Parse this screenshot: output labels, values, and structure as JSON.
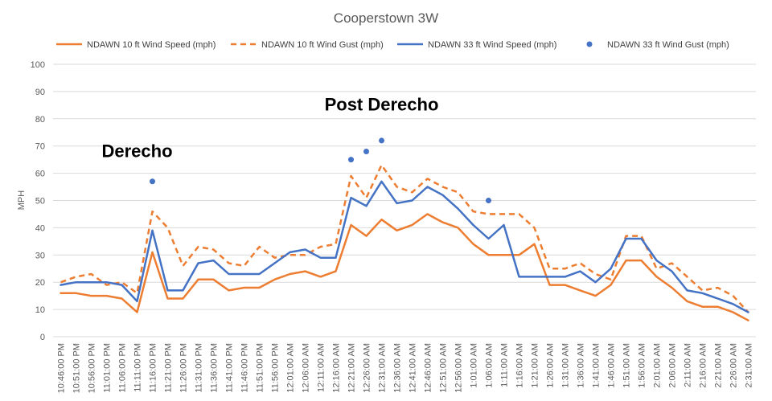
{
  "chart_data": {
    "type": "line",
    "title": "Cooperstown 3W",
    "ylabel": "MPH",
    "xlabel": "",
    "ylim": [
      0,
      100
    ],
    "yticks": [
      0,
      10,
      20,
      30,
      40,
      50,
      60,
      70,
      80,
      90,
      100
    ],
    "grid": true,
    "legend_position": "top",
    "categories": [
      "10:46:00 PM",
      "10:51:00 PM",
      "10:56:00 PM",
      "11:01:00 PM",
      "11:06:00 PM",
      "11:11:00 PM",
      "11:16:00 PM",
      "11:21:00 PM",
      "11:26:00 PM",
      "11:31:00 PM",
      "11:36:00 PM",
      "11:41:00 PM",
      "11:46:00 PM",
      "11:51:00 PM",
      "11:56:00 PM",
      "12:01:00 AM",
      "12:06:00 AM",
      "12:11:00 AM",
      "12:16:00 AM",
      "12:21:00 AM",
      "12:26:00 AM",
      "12:31:00 AM",
      "12:36:00 AM",
      "12:41:00 AM",
      "12:46:00 AM",
      "12:51:00 AM",
      "12:56:00 AM",
      "1:01:00 AM",
      "1:06:00 AM",
      "1:11:00 AM",
      "1:16:00 AM",
      "1:21:00 AM",
      "1:26:00 AM",
      "1:31:00 AM",
      "1:36:00 AM",
      "1:41:00 AM",
      "1:46:00 AM",
      "1:51:00 AM",
      "1:56:00 AM",
      "2:01:00 AM",
      "2:06:00 AM",
      "2:11:00 AM",
      "2:16:00 AM",
      "2:21:00 AM",
      "2:26:00 AM",
      "2:31:00 AM"
    ],
    "x_label_slots": 46,
    "series": [
      {
        "name": "NDAWN 10 ft Wind Speed (mph)",
        "color": "#ED7D31",
        "style": "solid",
        "values": [
          16,
          16,
          15,
          15,
          14,
          9,
          31,
          14,
          14,
          21,
          21,
          17,
          18,
          18,
          21,
          23,
          24,
          22,
          24,
          41,
          37,
          43,
          39,
          41,
          45,
          42,
          40,
          34,
          30,
          30,
          30,
          34,
          19,
          19,
          17,
          15,
          19,
          28,
          28,
          22,
          18,
          13,
          11,
          11,
          9,
          6
        ]
      },
      {
        "name": "NDAWN 10 ft Wind Gust (mph)",
        "color": "#ED7D31",
        "style": "dashed",
        "values": [
          20,
          22,
          23,
          19,
          20,
          16,
          46,
          40,
          26,
          33,
          32,
          27,
          26,
          33,
          29,
          30,
          30,
          33,
          34,
          59,
          51,
          63,
          55,
          53,
          58,
          55,
          53,
          46,
          45,
          45,
          45,
          40,
          25,
          25,
          27,
          23,
          21,
          37,
          37,
          25,
          27,
          22,
          17,
          18,
          15,
          9
        ]
      },
      {
        "name": "NDAWN 33 ft Wind Speed (mph)",
        "color": "#4472C4",
        "style": "solid",
        "values": [
          19,
          20,
          20,
          20,
          19,
          13,
          39,
          17,
          17,
          27,
          28,
          23,
          23,
          23,
          27,
          31,
          32,
          29,
          29,
          51,
          48,
          57,
          49,
          50,
          55,
          52,
          47,
          41,
          36,
          41,
          22,
          22,
          22,
          22,
          24,
          20,
          25,
          36,
          36,
          28,
          24,
          17,
          16,
          14,
          12,
          9
        ]
      },
      {
        "name": "NDAWN 33 ft Wind Gust (mph)",
        "color": "#4472C4",
        "style": "markers",
        "points": [
          {
            "category": "11:16:00 PM",
            "value": 57
          },
          {
            "category": "12:21:00 AM",
            "value": 65
          },
          {
            "category": "12:26:00 AM",
            "value": 68
          },
          {
            "category": "12:31:00 AM",
            "value": 72
          },
          {
            "category": "1:06:00 AM",
            "value": 50
          }
        ]
      }
    ],
    "annotations": [
      {
        "text": "Derecho",
        "category": "11:11:00 PM",
        "value": 66
      },
      {
        "text": "Post Derecho",
        "category": "12:31:00 AM",
        "value": 83
      }
    ]
  }
}
